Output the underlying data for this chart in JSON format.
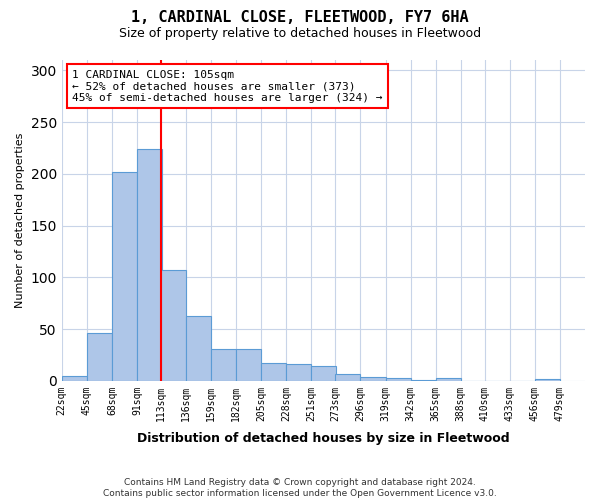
{
  "title": "1, CARDINAL CLOSE, FLEETWOOD, FY7 6HA",
  "subtitle": "Size of property relative to detached houses in Fleetwood",
  "xlabel": "Distribution of detached houses by size in Fleetwood",
  "ylabel": "Number of detached properties",
  "bin_labels": [
    "22sqm",
    "45sqm",
    "68sqm",
    "91sqm",
    "113sqm",
    "136sqm",
    "159sqm",
    "182sqm",
    "205sqm",
    "228sqm",
    "251sqm",
    "273sqm",
    "296sqm",
    "319sqm",
    "342sqm",
    "365sqm",
    "388sqm",
    "410sqm",
    "433sqm",
    "456sqm",
    "479sqm"
  ],
  "bin_edges": [
    22,
    45,
    68,
    91,
    113,
    136,
    159,
    182,
    205,
    228,
    251,
    273,
    296,
    319,
    342,
    365,
    388,
    410,
    433,
    456,
    479
  ],
  "bar_heights": [
    5,
    46,
    202,
    224,
    107,
    63,
    31,
    31,
    17,
    16,
    14,
    7,
    4,
    3,
    1,
    3,
    0,
    0,
    0,
    2
  ],
  "bar_color": "#aec6e8",
  "bar_edge_color": "#5b9bd5",
  "red_line_x": 113,
  "annotation_text": "1 CARDINAL CLOSE: 105sqm\n← 52% of detached houses are smaller (373)\n45% of semi-detached houses are larger (324) →",
  "annotation_box_color": "white",
  "annotation_box_edge_color": "red",
  "ylim": [
    0,
    310
  ],
  "yticks": [
    0,
    50,
    100,
    150,
    200,
    250,
    300
  ],
  "footer_text": "Contains HM Land Registry data © Crown copyright and database right 2024.\nContains public sector information licensed under the Open Government Licence v3.0.",
  "background_color": "#ffffff",
  "plot_bg_color": "#ffffff",
  "grid_color": "#c8d4e8"
}
